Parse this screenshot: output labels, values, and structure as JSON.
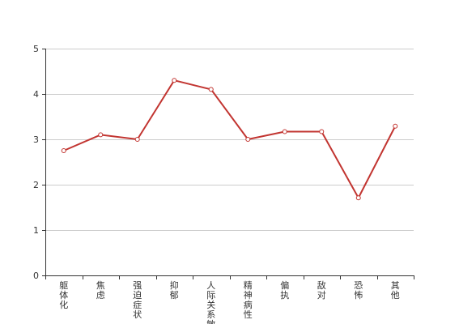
{
  "chart_data": {
    "type": "line",
    "categories": [
      "躯体化",
      "焦虑",
      "强迫症状",
      "抑郁",
      "人际关系敏感",
      "精神病性",
      "偏执",
      "敌对",
      "恐怖",
      "其他"
    ],
    "series": [
      {
        "values": [
          2.75,
          3.1,
          3.0,
          4.3,
          4.1,
          3.0,
          3.17,
          3.17,
          1.71,
          3.29
        ]
      }
    ],
    "ylim": [
      0,
      5
    ],
    "yticks": [
      0,
      1,
      2,
      3,
      4,
      5
    ],
    "grid": true,
    "colors": {
      "line": "#c23531",
      "grid": "#cccccc",
      "axis": "#333333",
      "marker_fill": "#ffffff"
    }
  }
}
